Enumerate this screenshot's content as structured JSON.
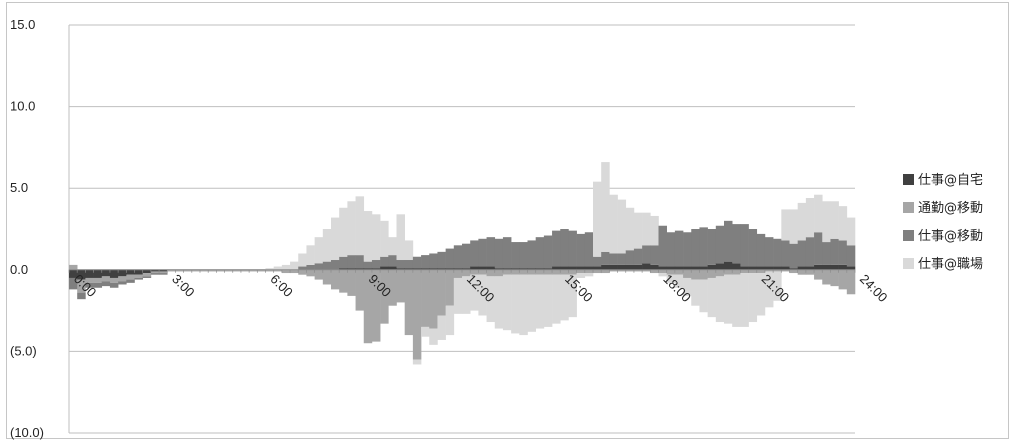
{
  "chart_data": {
    "type": "bar",
    "stacked": true,
    "title": "",
    "xlabel": "",
    "ylabel": "",
    "ylim": [
      -10,
      15
    ],
    "y_ticks": [
      "15.0",
      "10.0",
      "5.0",
      "0.0",
      "(5.0)",
      "(10.0)"
    ],
    "y_tick_values": [
      15,
      10,
      5,
      0,
      -5,
      -10
    ],
    "x_tick_labels": [
      "0:00",
      "3:00",
      "6:00",
      "9:00",
      "12:00",
      "15:00",
      "18:00",
      "21:00",
      "24:00"
    ],
    "x_tick_hours": [
      0,
      3,
      6,
      9,
      12,
      15,
      18,
      21,
      24
    ],
    "grid": true,
    "legend_position": "right",
    "bins_per_hour": 4,
    "series": [
      {
        "name": "仕事@自宅",
        "color": "#404040",
        "values": [
          -0.5,
          -0.6,
          -0.5,
          -0.5,
          -0.4,
          -0.5,
          -0.4,
          -0.3,
          -0.3,
          -0.2,
          -0.1,
          -0.1,
          0,
          0,
          0,
          0,
          0,
          0,
          0,
          0,
          0,
          0,
          0,
          0,
          0,
          0,
          0,
          0,
          0,
          0,
          0,
          0,
          0,
          0.1,
          0.1,
          0.1,
          0.1,
          0.1,
          0.2,
          0.2,
          0.1,
          0.1,
          0.1,
          0.1,
          0.1,
          0.1,
          0.1,
          0.1,
          0.1,
          0.2,
          0.2,
          0.2,
          0.1,
          0.1,
          0.1,
          0.1,
          0.1,
          0.1,
          0.1,
          0.2,
          0.2,
          0.2,
          0.2,
          0.2,
          0.2,
          0.3,
          0.3,
          0.3,
          0.3,
          0.3,
          0.4,
          0.3,
          0.2,
          0.2,
          0.2,
          0.2,
          0.2,
          0.2,
          0.3,
          0.4,
          0.5,
          0.4,
          0.2,
          0.2,
          0.2,
          0.2,
          0.2,
          0.2,
          0.1,
          0.2,
          0.2,
          0.3,
          0.3,
          0.3,
          0.3,
          0.2,
          0.2,
          0.2,
          0.2,
          0.2,
          0.2,
          0.2,
          0.2,
          0.3,
          0.4,
          0.4,
          0.5,
          0.4,
          0.2,
          0.2,
          0.3,
          0.3,
          0.5,
          0.7,
          0.8,
          1.0,
          1.3,
          1.2,
          1.4,
          1.6,
          1.8,
          1.9,
          1.8,
          2.0,
          2.1,
          2.2,
          2.0,
          2.0
        ]
      },
      {
        "name": "通勤@移動",
        "color": "#a6a6a6",
        "values": [
          0.3,
          -0.8,
          -0.3,
          -0.3,
          -0.3,
          -0.3,
          -0.3,
          -0.3,
          -0.2,
          -0.2,
          -0.1,
          -0.1,
          -0.1,
          -0.1,
          -0.1,
          -0.1,
          -0.1,
          -0.1,
          -0.1,
          -0.1,
          -0.1,
          -0.1,
          -0.1,
          -0.1,
          -0.1,
          -0.1,
          -0.2,
          -0.2,
          -0.3,
          -0.4,
          -0.6,
          -0.9,
          -1.2,
          -1.4,
          -1.6,
          -2.5,
          -4.5,
          -4.4,
          -3.3,
          -2.2,
          -2.0,
          -4.0,
          -5.5,
          -3.5,
          -3.6,
          -2.8,
          -2.2,
          -0.5,
          -0.4,
          -0.3,
          -0.3,
          -0.4,
          -0.4,
          -0.3,
          -0.3,
          -0.3,
          -0.3,
          -0.3,
          -0.3,
          -0.3,
          -0.3,
          -0.3,
          -0.2,
          -0.2,
          -0.2,
          -0.2,
          -0.1,
          -0.1,
          -0.1,
          -0.1,
          -0.1,
          -0.2,
          -0.2,
          -0.3,
          -0.3,
          -0.5,
          -0.6,
          -0.6,
          -0.5,
          -0.4,
          -0.3,
          -0.3,
          -0.2,
          -0.2,
          -0.2,
          -0.1,
          -0.1,
          -0.1,
          -0.2,
          -0.3,
          -0.3,
          -0.6,
          -0.9,
          -1.0,
          -1.2,
          -1.5,
          -1.9,
          -2.1,
          -2.3,
          -2.6,
          -2.5,
          -2.5,
          -2.4,
          -2.5,
          -2.6,
          -2.6,
          -2.5,
          -2.4,
          -2.2,
          -2.0,
          -1.6,
          -1.4,
          -1.2,
          0.5,
          0.3,
          0.4,
          0.5,
          0.7,
          0.9,
          0.8,
          0.6,
          0.6,
          0.5,
          0.4,
          0.3,
          0.2
        ]
      },
      {
        "name": "仕事@移動",
        "color": "#7f7f7f",
        "values": [
          -0.7,
          -0.4,
          -0.3,
          -0.3,
          -0.3,
          -0.3,
          -0.2,
          -0.2,
          -0.1,
          -0.1,
          -0.1,
          -0.1,
          0,
          0,
          0,
          0,
          0,
          0,
          0,
          0,
          0,
          0,
          0,
          0,
          0,
          0,
          0,
          0,
          0.2,
          0.3,
          0.4,
          0.5,
          0.6,
          0.7,
          0.8,
          0.8,
          0.4,
          0.5,
          0.6,
          0.7,
          0.5,
          0.5,
          0.7,
          0.8,
          0.9,
          1.0,
          1.2,
          1.4,
          1.5,
          1.6,
          1.7,
          1.8,
          1.8,
          1.9,
          1.6,
          1.6,
          1.7,
          1.9,
          2.0,
          2.2,
          2.3,
          2.2,
          2.0,
          2.1,
          0.6,
          0.8,
          0.7,
          0.7,
          0.9,
          1.0,
          1.1,
          1.2,
          2.5,
          2.1,
          2.2,
          2.1,
          2.3,
          2.4,
          2.2,
          2.3,
          2.5,
          2.4,
          2.6,
          2.3,
          2.0,
          1.8,
          1.7,
          1.6,
          1.5,
          1.6,
          1.8,
          2.0,
          1.4,
          1.6,
          1.5,
          1.3,
          1.2,
          1.1,
          0.9,
          0.8,
          0.6,
          0.5,
          0.4,
          0.4,
          0.3,
          0.3,
          0.3,
          0.3,
          0.3,
          0.3,
          0.3,
          0.3,
          0.3,
          0.4,
          0.5,
          0.6,
          0.5,
          0.5,
          0.4,
          0.3,
          0.3,
          0.2,
          0.2,
          0.2
        ]
      },
      {
        "name": "仕事@職場",
        "color": "#d9d9d9",
        "values": [
          0,
          0,
          0,
          0,
          0,
          0,
          0,
          0,
          0,
          0,
          0,
          0,
          0,
          0,
          0,
          0,
          0,
          0,
          0,
          0,
          0,
          0,
          0,
          0,
          0.1,
          0.2,
          0.3,
          0.5,
          0.8,
          1.2,
          1.6,
          2.0,
          2.6,
          3.0,
          3.3,
          3.6,
          3.1,
          2.8,
          2.2,
          1.1,
          2.8,
          1.2,
          -0.3,
          -0.6,
          -1.0,
          -1.5,
          -1.8,
          -2.2,
          -2.3,
          -2.2,
          -2.5,
          -2.8,
          -3.2,
          -3.4,
          -3.6,
          -3.7,
          -3.5,
          -3.3,
          -3.2,
          -3.0,
          -2.8,
          -2.6,
          -0.3,
          -0.2,
          4.6,
          5.5,
          3.6,
          3.3,
          2.6,
          2.2,
          2.0,
          1.8,
          -0.2,
          -0.5,
          -0.8,
          -1.1,
          -1.6,
          -2.0,
          -2.4,
          -2.8,
          -3.0,
          -3.2,
          -3.3,
          -3.0,
          -2.6,
          -2.2,
          -1.8,
          1.9,
          2.1,
          2.3,
          2.4,
          2.3,
          2.5,
          2.3,
          2.1,
          1.7,
          1.2,
          -0.3,
          -0.5,
          -0.6,
          -0.6,
          -0.5,
          -0.4,
          -0.3,
          -0.3,
          -0.3,
          -0.2,
          -0.2,
          -0.2,
          -0.2,
          -0.2,
          -0.2,
          -0.2,
          -0.2,
          -0.2,
          -0.2,
          -0.2,
          -0.2,
          -0.2,
          -0.2,
          -0.2,
          -0.2,
          -0.2,
          -0.2
        ]
      }
    ]
  }
}
